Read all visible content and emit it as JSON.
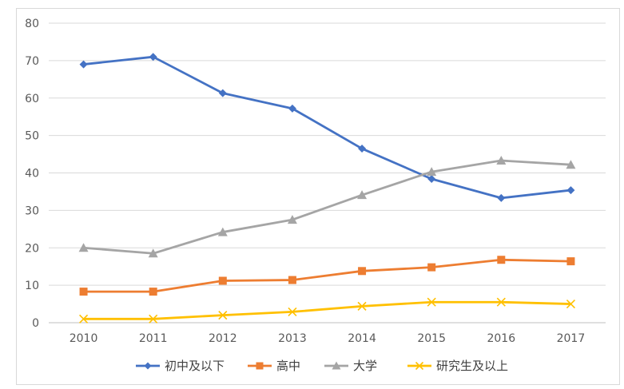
{
  "chart_data": {
    "type": "line",
    "title": "",
    "xlabel": "",
    "ylabel": "",
    "categories": [
      "2010",
      "2011",
      "2012",
      "2013",
      "2014",
      "2015",
      "2016",
      "2017"
    ],
    "ylim": [
      0,
      80
    ],
    "yticks": [
      0,
      10,
      20,
      30,
      40,
      50,
      60,
      70,
      80
    ],
    "grid": true,
    "legend_position": "bottom",
    "series": [
      {
        "name": "初中及以下",
        "color": "#4472C4",
        "marker": "diamond",
        "values": [
          69,
          71,
          61.3,
          57.2,
          46.5,
          38.4,
          33.3,
          35.4
        ]
      },
      {
        "name": "高中",
        "color": "#ED7D31",
        "marker": "square",
        "values": [
          8.3,
          8.3,
          11.2,
          11.4,
          13.8,
          14.8,
          16.8,
          16.4
        ]
      },
      {
        "name": "大学",
        "color": "#A5A5A5",
        "marker": "triangle",
        "values": [
          20,
          18.5,
          24.2,
          27.5,
          34.1,
          40.3,
          43.3,
          42.2
        ]
      },
      {
        "name": "研究生及以上",
        "color": "#FFC000",
        "marker": "x",
        "values": [
          1,
          1,
          2,
          2.9,
          4.4,
          5.5,
          5.5,
          5
        ]
      }
    ]
  }
}
